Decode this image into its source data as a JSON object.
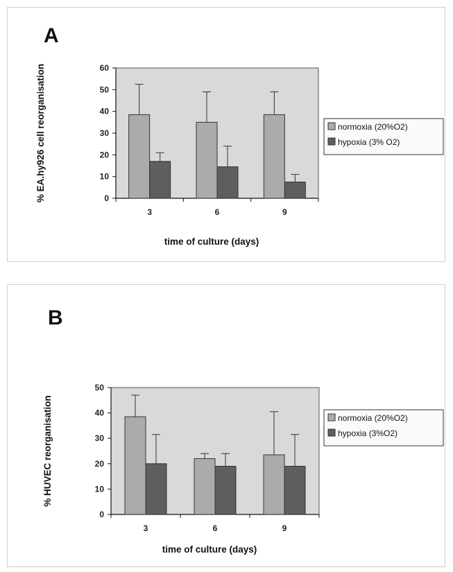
{
  "colors": {
    "normoxia": "#ababab",
    "hypoxia": "#5e5e5e",
    "plot_bg": "#d9d9d9",
    "bar_outline": "#333333"
  },
  "chart_data": [
    {
      "panel": "A",
      "type": "bar",
      "categories": [
        "3",
        "6",
        "9"
      ],
      "xlabel": "time of culture (days)",
      "ylabel": "% EA.hy926 cell reorganisation",
      "ylim": [
        0,
        60
      ],
      "yticks": [
        "0",
        "10",
        "20",
        "30",
        "40",
        "50",
        "60"
      ],
      "grid": false,
      "legend_position": "right",
      "series": [
        {
          "name": "normoxia (20%O2)",
          "values": [
            38.5,
            35,
            38.5
          ],
          "errors": [
            14,
            14,
            10.5
          ]
        },
        {
          "name": "hypoxia (3% O2)",
          "values": [
            17,
            14.5,
            7.5
          ],
          "errors": [
            4,
            9.5,
            3.5
          ]
        }
      ]
    },
    {
      "panel": "B",
      "type": "bar",
      "categories": [
        "3",
        "6",
        "9"
      ],
      "xlabel": "time of culture (days)",
      "ylabel": "% HUVEC reorganisation",
      "ylim": [
        0,
        50
      ],
      "yticks": [
        "0",
        "10",
        "20",
        "30",
        "40",
        "50"
      ],
      "grid": false,
      "legend_position": "right",
      "series": [
        {
          "name": "normoxia (20%O2)",
          "values": [
            38.5,
            22,
            23.5
          ],
          "errors": [
            8.5,
            2,
            17
          ]
        },
        {
          "name": "hypoxia (3%O2)",
          "values": [
            20,
            19,
            19
          ],
          "errors": [
            11.5,
            5,
            12.5
          ]
        }
      ]
    }
  ]
}
